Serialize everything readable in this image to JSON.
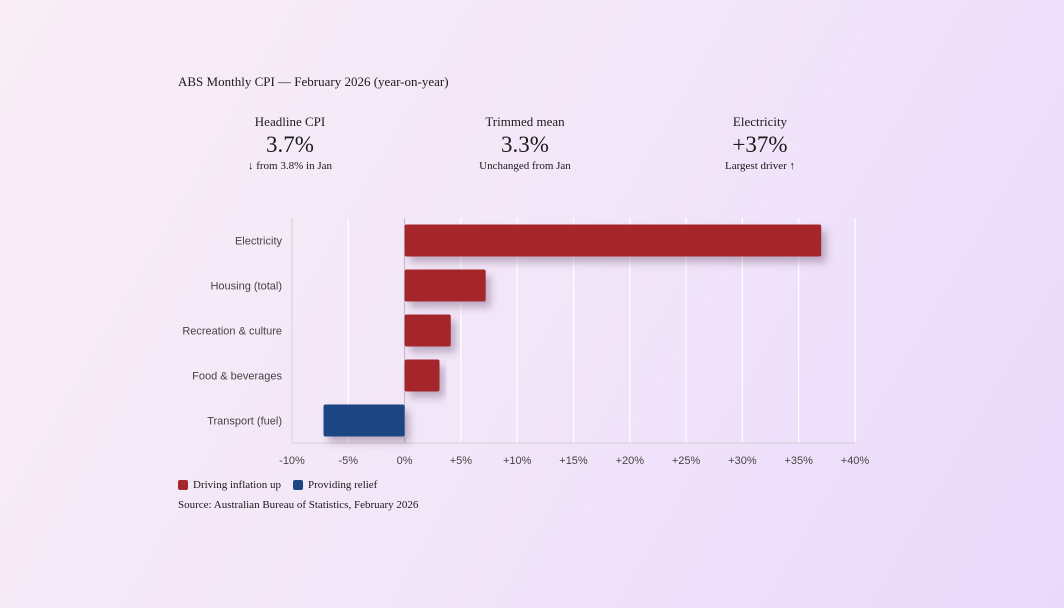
{
  "title": "ABS Monthly CPI — February 2026 (year-on-year)",
  "stats": [
    {
      "label": "Headline CPI",
      "value": "3.7%",
      "note": "↓ from 3.8% in Jan"
    },
    {
      "label": "Trimmed mean",
      "value": "3.3%",
      "note": "Unchanged from Jan"
    },
    {
      "label": "Electricity",
      "value": "+37%",
      "note": "Largest driver ↑"
    }
  ],
  "colors": {
    "up": "#a4282b",
    "relief": "#1c4584"
  },
  "chart_data": {
    "type": "bar",
    "orientation": "horizontal",
    "categories": [
      "Electricity",
      "Housing (total)",
      "Recreation & culture",
      "Food & beverages",
      "Transport (fuel)"
    ],
    "values": [
      37,
      7.2,
      4.1,
      3.1,
      -7.2
    ],
    "series_by_bar": [
      "up",
      "up",
      "up",
      "up",
      "relief"
    ],
    "xlim": [
      -10,
      40
    ],
    "xticks": [
      -10,
      -5,
      0,
      5,
      10,
      15,
      20,
      25,
      30,
      35,
      40
    ],
    "xtick_labels": [
      "-10%",
      "-5%",
      "0%",
      "+5%",
      "+10%",
      "+15%",
      "+20%",
      "+25%",
      "+30%",
      "+35%",
      "+40%"
    ],
    "grid": true,
    "legend": [
      {
        "key": "up",
        "label": "Driving inflation up"
      },
      {
        "key": "relief",
        "label": "Providing relief"
      }
    ]
  },
  "source": "Source: Australian Bureau of Statistics, February 2026"
}
